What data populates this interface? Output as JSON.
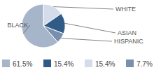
{
  "chart_data": {
    "type": "pie",
    "categories": [
      "WHITE",
      "ASIAN",
      "HISPANIC",
      "BLACK"
    ],
    "values": [
      15.4,
      15.4,
      7.7,
      61.5
    ],
    "value_labels": [
      "15.4%",
      "15.4%",
      "7.7%",
      "61.5%"
    ],
    "colors": [
      "#d3dce8",
      "#2f5b86",
      "#7890ad",
      "#a6b5ca"
    ],
    "data_labels": true,
    "legend": "bottom"
  }
}
